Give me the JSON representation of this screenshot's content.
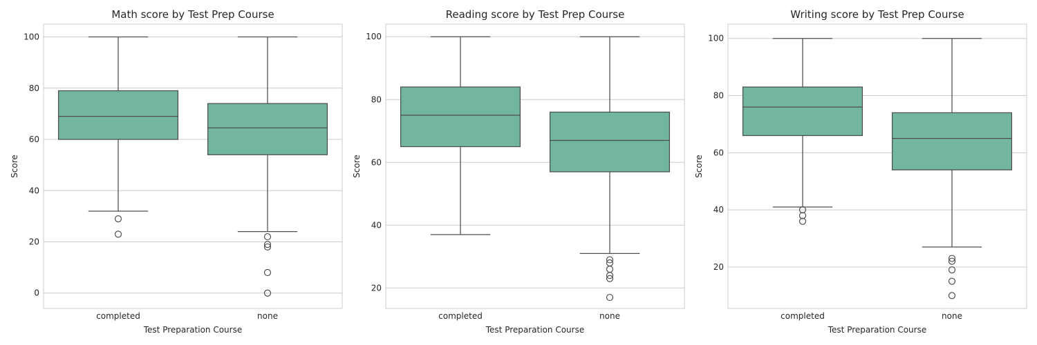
{
  "chart_data": [
    {
      "type": "box",
      "title": "Math score by Test Prep Course",
      "xlabel": "Test Preparation Course",
      "ylabel": "Score",
      "categories": [
        "completed",
        "none"
      ],
      "ylim": [
        -6,
        105
      ],
      "yticks": [
        0,
        20,
        40,
        60,
        80,
        100
      ],
      "grid": true,
      "box_color": "#72b6a1",
      "boxes": [
        {
          "category": "completed",
          "whisker_low": 32,
          "q1": 60,
          "median": 69,
          "q3": 79,
          "whisker_high": 100,
          "outliers": [
            29,
            23
          ]
        },
        {
          "category": "none",
          "whisker_low": 24,
          "q1": 54,
          "median": 64.5,
          "q3": 74,
          "whisker_high": 100,
          "outliers": [
            22,
            19,
            18,
            8,
            0
          ]
        }
      ]
    },
    {
      "type": "box",
      "title": "Reading score by Test Prep Course",
      "xlabel": "Test Preparation Course",
      "ylabel": "Score",
      "categories": [
        "completed",
        "none"
      ],
      "ylim": [
        13.5,
        104
      ],
      "yticks": [
        20,
        40,
        60,
        80,
        100
      ],
      "grid": true,
      "box_color": "#72b6a1",
      "boxes": [
        {
          "category": "completed",
          "whisker_low": 37,
          "q1": 65,
          "median": 75,
          "q3": 84,
          "whisker_high": 100,
          "outliers": []
        },
        {
          "category": "none",
          "whisker_low": 31,
          "q1": 57,
          "median": 67,
          "q3": 76,
          "whisker_high": 100,
          "outliers": [
            29,
            28,
            26,
            24,
            23,
            17
          ]
        }
      ]
    },
    {
      "type": "box",
      "title": "Writing score by Test Prep Course",
      "xlabel": "Test Preparation Course",
      "ylabel": "Score",
      "categories": [
        "completed",
        "none"
      ],
      "ylim": [
        5.5,
        105
      ],
      "yticks": [
        20,
        40,
        60,
        80,
        100
      ],
      "grid": true,
      "box_color": "#72b6a1",
      "boxes": [
        {
          "category": "completed",
          "whisker_low": 41,
          "q1": 66,
          "median": 76,
          "q3": 83,
          "whisker_high": 100,
          "outliers": [
            40,
            38,
            36
          ]
        },
        {
          "category": "none",
          "whisker_low": 27,
          "q1": 54,
          "median": 65,
          "q3": 74,
          "whisker_high": 100,
          "outliers": [
            23,
            22,
            19,
            15,
            10
          ]
        }
      ]
    }
  ]
}
